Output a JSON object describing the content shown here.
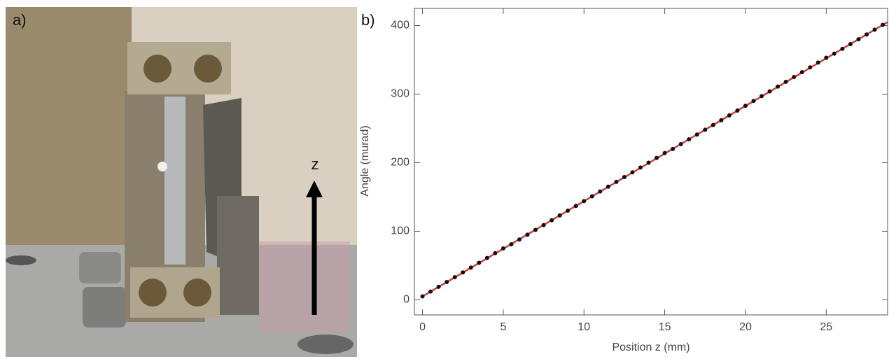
{
  "photo": {
    "panel_label": "a)",
    "axis_label": "z"
  },
  "chart_data": {
    "type": "scatter",
    "panel_label": "b)",
    "x_label": "Position z (mm)",
    "y_label": "Angle (murad)",
    "x": [
      0,
      0.5,
      1,
      1.5,
      2,
      2.5,
      3,
      3.5,
      4,
      4.5,
      5,
      5.5,
      6,
      6.5,
      7,
      7.5,
      8,
      8.5,
      9,
      9.5,
      10,
      10.5,
      11,
      11.5,
      12,
      12.5,
      13,
      13.5,
      14,
      14.5,
      15,
      15.5,
      16,
      16.5,
      17,
      17.5,
      18,
      18.5,
      19,
      19.5,
      20,
      20.5,
      21,
      21.5,
      22,
      22.5,
      23,
      23.5,
      24,
      24.5,
      25,
      25.5,
      26,
      26.5,
      27,
      27.5,
      28,
      28.5
    ],
    "values": [
      5,
      12,
      19,
      26,
      33,
      40,
      47,
      54,
      61,
      68,
      75,
      81,
      88,
      95,
      102,
      109,
      116,
      123,
      130,
      137,
      144,
      151,
      158,
      165,
      172,
      179,
      186,
      193,
      200,
      207,
      214,
      220,
      227,
      234,
      241,
      248,
      255,
      262,
      269,
      276,
      283,
      290,
      297,
      304,
      311,
      318,
      325,
      332,
      339,
      346,
      353,
      359,
      366,
      373,
      380,
      387,
      394,
      401
    ],
    "color": "#111111",
    "fit": {
      "x": [
        0,
        28.8
      ],
      "values": [
        5,
        405
      ],
      "color": "#d83a3a"
    },
    "xlim": [
      -0.5,
      28.8
    ],
    "ylim": [
      -22,
      425
    ],
    "xticks": [
      0,
      5,
      10,
      15,
      20,
      25
    ],
    "yticks": [
      0,
      100,
      200,
      300,
      400
    ]
  }
}
